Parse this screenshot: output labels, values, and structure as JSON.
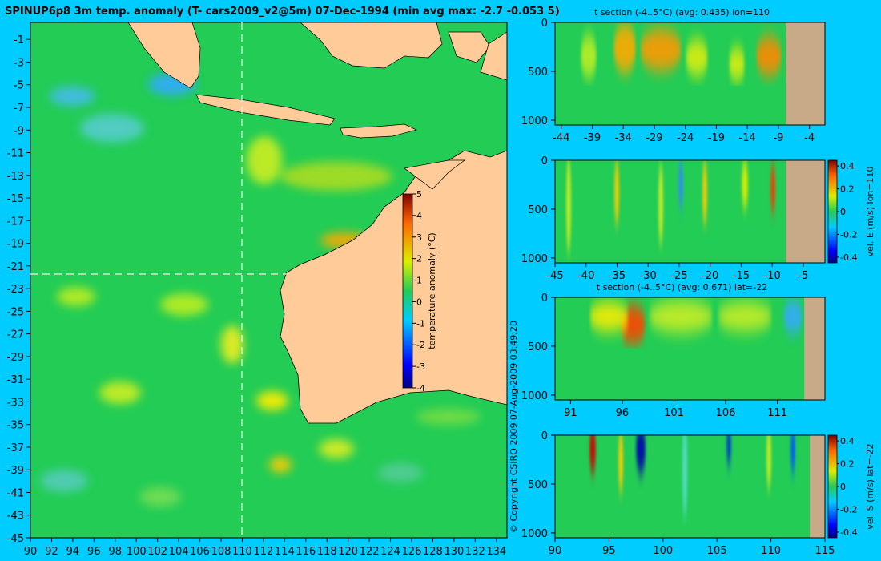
{
  "title": "SPINUP6p8 3m temp. anomaly (T- cars2009_v2@5m) 07-Dec-1994 (min avg max: -2.7 -0.053 5)",
  "copyright": "© Copyright CSIRO 2009   07-Aug-2009 03:49:20",
  "colors": {
    "background": "#00ccff",
    "land": "#ffcc99",
    "ocean": "#22cc55",
    "section_land": "#c8aa88"
  },
  "chart_data": [
    {
      "id": "map",
      "type": "heatmap",
      "x_ticks": [
        90,
        92,
        94,
        96,
        98,
        100,
        102,
        104,
        106,
        108,
        110,
        112,
        114,
        116,
        118,
        120,
        122,
        124,
        126,
        128,
        130,
        132,
        134
      ],
      "y_ticks": [
        -1,
        -3,
        -5,
        -7,
        -9,
        -11,
        -13,
        -15,
        -17,
        -19,
        -21,
        -23,
        -25,
        -27,
        -29,
        -31,
        -33,
        -35,
        -37,
        -39,
        -41,
        -43,
        -45
      ],
      "xlim": [
        90,
        135
      ],
      "ylim": [
        -45,
        0.5
      ],
      "section_lon": 110,
      "section_lat": -22,
      "colorbar": {
        "label": "temperature anomaly (°C)",
        "ticks": [
          5,
          4,
          3,
          2,
          1,
          0,
          -1,
          -2,
          -3,
          -4
        ],
        "range": [
          -4,
          5
        ]
      }
    },
    {
      "id": "section1",
      "type": "heatmap",
      "title": "t section (-4..5°C) (avg: 0.435) lon=110",
      "x_ticks": [
        -44,
        -39,
        -34,
        -29,
        -24,
        -19,
        -14,
        -9,
        -4
      ],
      "xlim": [
        -45,
        -1.5
      ],
      "y_ticks": [
        0,
        500,
        1000
      ],
      "ylim": [
        1050,
        0
      ],
      "land_from_x": -7.8
    },
    {
      "id": "section2",
      "type": "heatmap",
      "title": "",
      "x_ticks": [
        -45,
        -40,
        -35,
        -30,
        -25,
        -20,
        -15,
        -10,
        -5
      ],
      "xlim": [
        -45,
        -1.5
      ],
      "y_ticks": [
        0,
        500,
        1000
      ],
      "ylim": [
        1050,
        0
      ],
      "land_from_x": -7.8,
      "colorbar": {
        "label": "vel. E (m/s) lon=110",
        "ticks": [
          "0.4",
          "0.2",
          "0",
          "-0.2",
          "-0.4"
        ],
        "range": [
          -0.45,
          0.45
        ]
      }
    },
    {
      "id": "section3",
      "type": "heatmap",
      "title": "t section (-4..5°C) (avg: 0.671) lat=-22",
      "x_ticks": [
        91,
        96,
        101,
        106,
        111
      ],
      "xlim": [
        89.5,
        115.6
      ],
      "y_ticks": [
        0,
        500,
        1000
      ],
      "ylim": [
        1050,
        0
      ],
      "land_from_x": 113.6
    },
    {
      "id": "section4",
      "type": "heatmap",
      "title": "",
      "x_ticks": [
        90,
        95,
        100,
        105,
        110,
        115
      ],
      "xlim": [
        90,
        115
      ],
      "y_ticks": [
        0,
        500,
        1000
      ],
      "ylim": [
        1050,
        0
      ],
      "land_from_x": 113.6,
      "colorbar": {
        "label": "vel. S (m/s) lat=-22",
        "ticks": [
          "0.4",
          "0.2",
          "0",
          "-0.2",
          "-0.4"
        ],
        "range": [
          -0.45,
          0.45
        ]
      }
    }
  ]
}
